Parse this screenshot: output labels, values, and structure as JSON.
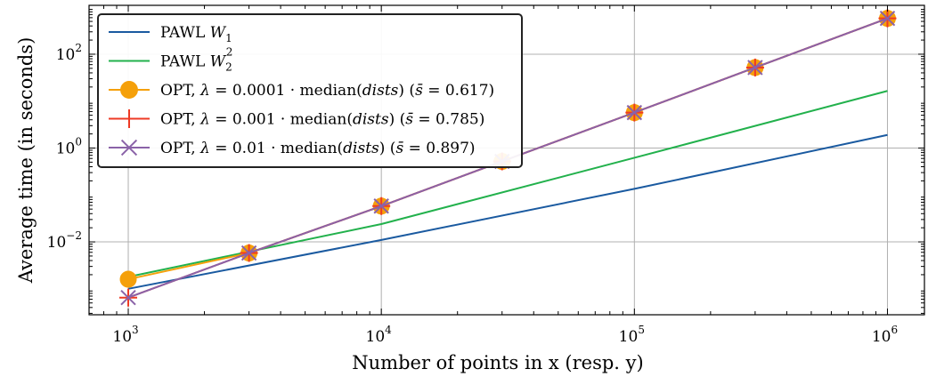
{
  "chart_data": {
    "type": "line",
    "title": "",
    "xlabel": "Number of points in x (resp. y)",
    "ylabel": "Average time (in seconds)",
    "xscale": "log",
    "yscale": "log",
    "xlim": [
      700,
      1400000
    ],
    "ylim": [
      0.00028,
      1100
    ],
    "grid": true,
    "legend_position": "top-left",
    "x_ticks": [
      {
        "value": 1000,
        "base": "10",
        "exp": "3"
      },
      {
        "value": 10000,
        "base": "10",
        "exp": "4"
      },
      {
        "value": 100000,
        "base": "10",
        "exp": "5"
      },
      {
        "value": 1000000,
        "base": "10",
        "exp": "6"
      }
    ],
    "y_ticks": [
      {
        "value": 0.01,
        "base": "10",
        "exp": "−2"
      },
      {
        "value": 1,
        "base": "10",
        "exp": "0"
      },
      {
        "value": 100,
        "base": "10",
        "exp": "2"
      }
    ],
    "series": [
      {
        "name": "PAWL W1",
        "legend_parts": [
          {
            "t": "PAWL "
          },
          {
            "t": "W",
            "italic": true
          },
          {
            "t": "1",
            "sub": true
          }
        ],
        "color": "#1a5aa0",
        "marker": "none",
        "x": [
          1000,
          10000,
          100000,
          1000000
        ],
        "y": [
          0.001,
          0.011,
          0.135,
          1.9
        ]
      },
      {
        "name": "PAWL W2^2",
        "legend_parts": [
          {
            "t": "PAWL "
          },
          {
            "t": "W",
            "italic": true
          },
          {
            "t": "2",
            "sub": true
          },
          {
            "t": "2",
            "sup": true
          }
        ],
        "color": "#22b14c",
        "marker": "none",
        "x": [
          1000,
          10000,
          100000,
          1000000
        ],
        "y": [
          0.0018,
          0.024,
          0.62,
          16.5
        ]
      },
      {
        "name": "OPT, λ = 0.0001 · median(dists) (s̄ = 0.617)",
        "legend_parts": [
          {
            "t": "OPT, "
          },
          {
            "t": "λ",
            "italic": true
          },
          {
            "t": " = 0.0001 · median("
          },
          {
            "t": "dists",
            "italic": true
          },
          {
            "t": ") ("
          },
          {
            "t": "s̄",
            "italic": true
          },
          {
            "t": " = 0.617)"
          }
        ],
        "color": "#f5a00a",
        "marker": "circle",
        "x": [
          1000,
          3000,
          10000,
          30000,
          100000,
          300000,
          1000000
        ],
        "y": [
          0.0016,
          0.0058,
          0.058,
          0.52,
          5.7,
          52,
          580
        ]
      },
      {
        "name": "OPT, λ = 0.001 · median(dists) (s̄ = 0.785)",
        "legend_parts": [
          {
            "t": "OPT, "
          },
          {
            "t": "λ",
            "italic": true
          },
          {
            "t": " = 0.001 · median("
          },
          {
            "t": "dists",
            "italic": true
          },
          {
            "t": ") ("
          },
          {
            "t": "s̄",
            "italic": true
          },
          {
            "t": " = 0.785)"
          }
        ],
        "color": "#ee3a24",
        "marker": "plus",
        "x": [
          1000,
          3000,
          10000,
          30000,
          100000,
          300000,
          1000000
        ],
        "y": [
          0.00065,
          0.0058,
          0.058,
          0.52,
          5.7,
          52,
          580
        ]
      },
      {
        "name": "OPT, λ = 0.01 · median(dists) (s̄ = 0.897)",
        "legend_parts": [
          {
            "t": "OPT, "
          },
          {
            "t": "λ",
            "italic": true
          },
          {
            "t": " = 0.01 · median("
          },
          {
            "t": "dists",
            "italic": true
          },
          {
            "t": ") ("
          },
          {
            "t": "s̄",
            "italic": true
          },
          {
            "t": " = 0.897)"
          }
        ],
        "color": "#8a62a8",
        "marker": "x",
        "x": [
          1000,
          3000,
          10000,
          30000,
          100000,
          300000,
          1000000
        ],
        "y": [
          0.00065,
          0.0058,
          0.058,
          0.52,
          5.7,
          52,
          580
        ]
      }
    ]
  }
}
